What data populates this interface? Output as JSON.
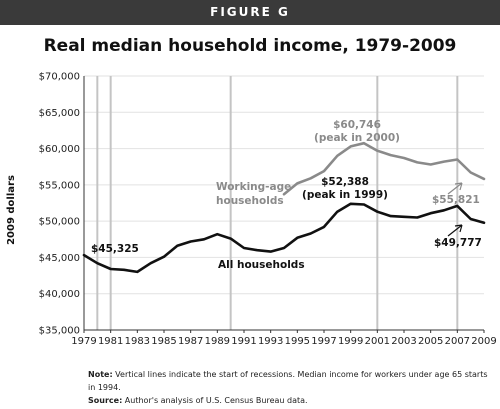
{
  "banner": "FIGURE G",
  "chart_data": {
    "type": "line",
    "title": "Real median household income, 1979-2009",
    "ylabel": "2009 dollars",
    "xlabel": "",
    "x": [
      1979,
      1980,
      1981,
      1982,
      1983,
      1984,
      1985,
      1986,
      1987,
      1988,
      1989,
      1990,
      1991,
      1992,
      1993,
      1994,
      1995,
      1996,
      1997,
      1998,
      1999,
      2000,
      2001,
      2002,
      2003,
      2004,
      2005,
      2006,
      2007,
      2008,
      2009
    ],
    "xlim": [
      1979,
      2009
    ],
    "ylim": [
      35000,
      70000
    ],
    "x_ticks": [
      "1979",
      "1981",
      "1983",
      "1985",
      "1987",
      "1989",
      "1991",
      "1993",
      "1995",
      "1997",
      "1999",
      "2001",
      "2003",
      "2005",
      "2007",
      "2009"
    ],
    "y_ticks": [
      "$35,000",
      "$40,000",
      "$45,000",
      "$50,000",
      "$55,000",
      "$60,000",
      "$65,000",
      "$70,000"
    ],
    "recessions": [
      1980,
      1981,
      1990,
      2001,
      2007
    ],
    "series": [
      {
        "name": "All households",
        "color": "#111111",
        "x": [
          1979,
          1980,
          1981,
          1982,
          1983,
          1984,
          1985,
          1986,
          1987,
          1988,
          1989,
          1990,
          1991,
          1992,
          1993,
          1994,
          1995,
          1996,
          1997,
          1998,
          1999,
          2000,
          2001,
          2002,
          2003,
          2004,
          2005,
          2006,
          2007,
          2008,
          2009
        ],
        "values": [
          45325,
          44200,
          43400,
          43300,
          43000,
          44200,
          45100,
          46600,
          47200,
          47500,
          48200,
          47600,
          46300,
          46000,
          45800,
          46300,
          47700,
          48300,
          49200,
          51300,
          52388,
          52300,
          51300,
          50700,
          50600,
          50500,
          51100,
          51500,
          52100,
          50300,
          49777
        ]
      },
      {
        "name": "Working-age households",
        "color": "#8a8a8a",
        "x": [
          1994,
          1995,
          1996,
          1997,
          1998,
          1999,
          2000,
          2001,
          2002,
          2003,
          2004,
          2005,
          2006,
          2007,
          2008,
          2009
        ],
        "values": [
          53700,
          55200,
          55900,
          56900,
          59000,
          60300,
          60746,
          59700,
          59100,
          58700,
          58100,
          57800,
          58200,
          58500,
          56700,
          55821
        ]
      }
    ],
    "annotations": {
      "start_all": "$45,325",
      "peak_all_value": "$52,388",
      "peak_all_note": "(peak in 1999)",
      "end_all": "$49,777",
      "peak_work_value": "$60,746",
      "peak_work_note": "(peak in 2000)",
      "end_work": "$55,821",
      "label_all": "All households",
      "label_work_line1": "Working-age",
      "label_work_line2": "households"
    }
  },
  "notes": {
    "note_label": "Note:",
    "note_text": " Vertical lines indicate the start of recessions. Median income for workers under age 65 starts in 1994.",
    "source_label": "Source:",
    "source_text": " Author's analysis of U.S. Census Bureau data."
  }
}
